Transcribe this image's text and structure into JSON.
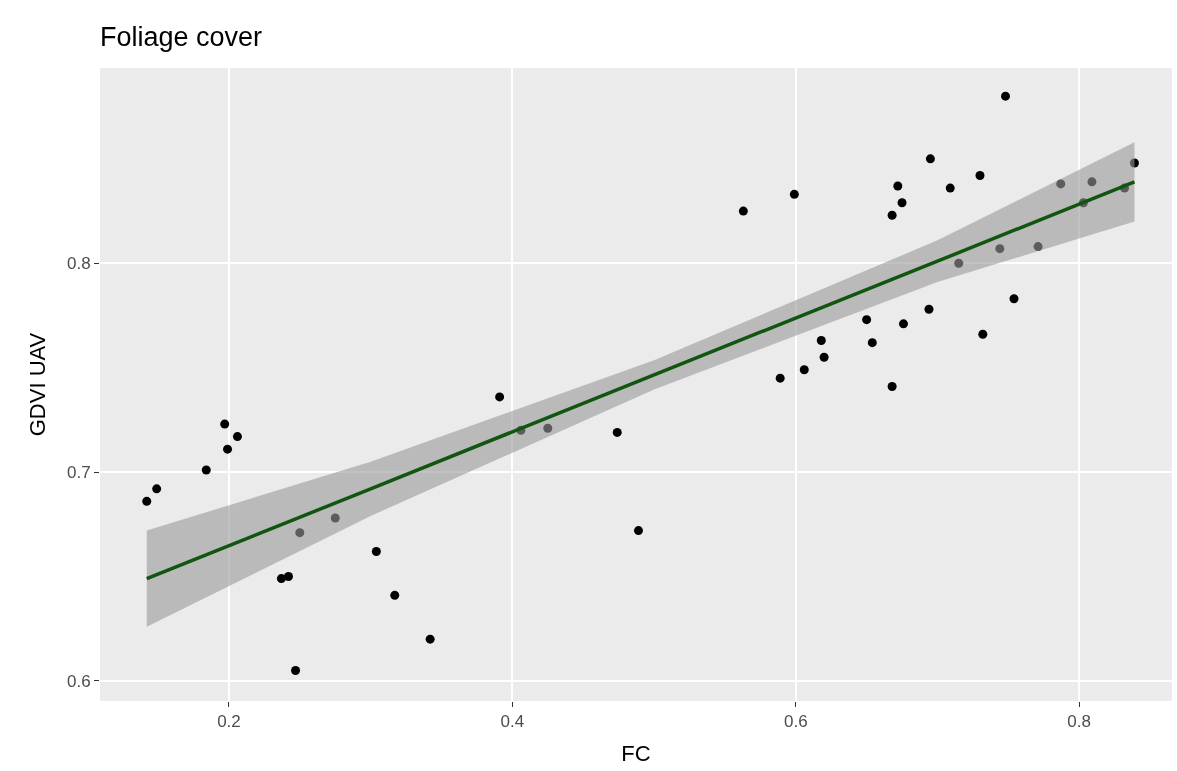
{
  "chart_data": {
    "type": "scatter",
    "title": "Foliage cover",
    "xlabel": "FC",
    "ylabel": "GDVI UAV",
    "xlim": [
      0.109,
      0.8655
    ],
    "xticks": [
      0.2,
      0.4,
      0.6,
      0.8
    ],
    "ylim": [
      0.5904,
      0.8935
    ],
    "yticks": [
      0.6,
      0.7,
      0.8
    ],
    "grid": true,
    "series": [
      {
        "color": "#000000",
        "marker": "circle",
        "x": [
          0.142,
          0.149,
          0.184,
          0.197,
          0.199,
          0.206,
          0.237,
          0.242,
          0.247,
          0.25,
          0.275,
          0.304,
          0.317,
          0.342,
          0.391,
          0.406,
          0.425,
          0.474,
          0.489,
          0.563,
          0.589,
          0.599,
          0.606,
          0.618,
          0.62,
          0.65,
          0.654,
          0.668,
          0.668,
          0.672,
          0.675,
          0.676,
          0.694,
          0.695,
          0.709,
          0.715,
          0.73,
          0.732,
          0.744,
          0.748,
          0.754,
          0.771,
          0.787,
          0.803,
          0.809,
          0.832,
          0.839
        ],
        "values": [
          0.686,
          0.692,
          0.701,
          0.723,
          0.711,
          0.717,
          0.649,
          0.65,
          0.605,
          0.671,
          0.678,
          0.662,
          0.641,
          0.62,
          0.736,
          0.72,
          0.721,
          0.719,
          0.672,
          0.825,
          0.745,
          0.833,
          0.749,
          0.763,
          0.755,
          0.773,
          0.762,
          0.741,
          0.823,
          0.837,
          0.829,
          0.771,
          0.778,
          0.85,
          0.836,
          0.8,
          0.842,
          0.766,
          0.807,
          0.88,
          0.783,
          0.808,
          0.838,
          0.829,
          0.839,
          0.836,
          0.848
        ]
      },
      {
        "type": "line",
        "color": "#115511",
        "marker": "none",
        "x": [
          0.142,
          0.3,
          0.5,
          0.7,
          0.839
        ],
        "values": [
          0.649,
          0.692,
          0.7466,
          0.801,
          0.839
        ],
        "lower": [
          0.626,
          0.679,
          0.7396,
          0.791,
          0.82
        ],
        "upper": [
          0.672,
          0.705,
          0.7536,
          0.811,
          0.858
        ]
      }
    ]
  }
}
